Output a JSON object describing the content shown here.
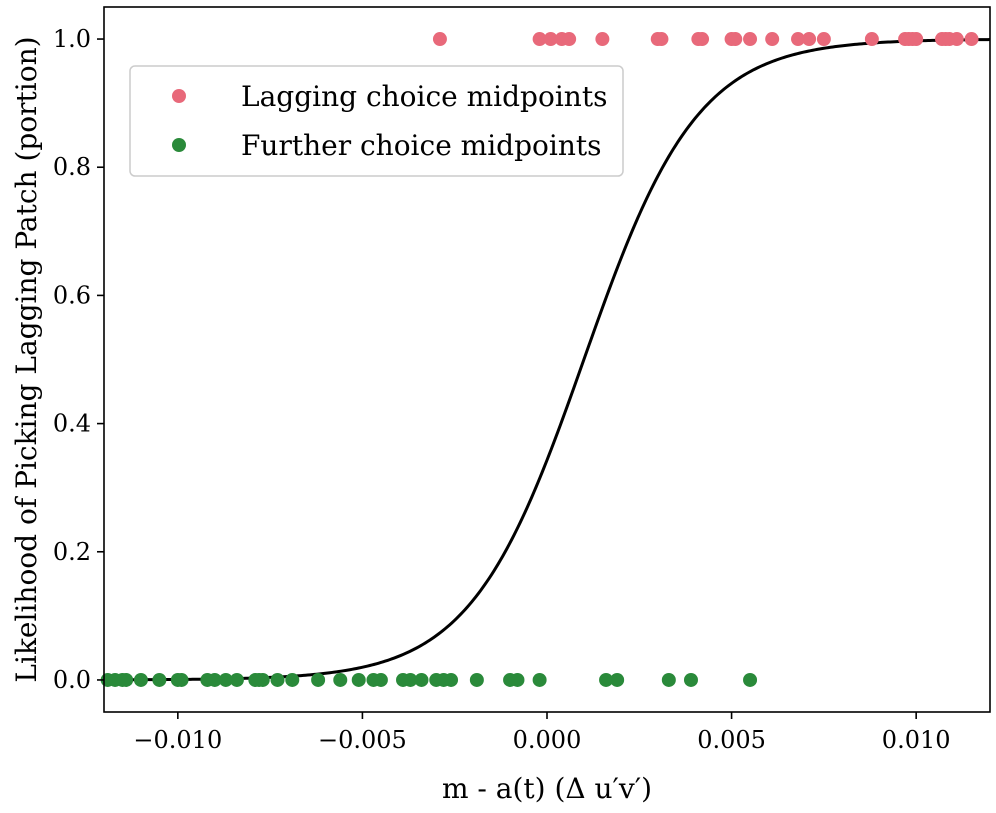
{
  "chart_data": {
    "type": "scatter",
    "title": "",
    "xlabel": "m - a(t) (Δ u′v′)",
    "ylabel": "Likelihood of Picking Lagging Patch (portion)",
    "xlim": [
      -0.012,
      0.012
    ],
    "ylim": [
      -0.05,
      1.05
    ],
    "xticks": [
      -0.01,
      -0.005,
      0.0,
      0.005,
      0.01
    ],
    "xtick_labels": [
      "−0.010",
      "−0.005",
      "0.000",
      "0.005",
      "0.010"
    ],
    "yticks": [
      0.0,
      0.2,
      0.4,
      0.6,
      0.8,
      1.0
    ],
    "ytick_labels": [
      "0.0",
      "0.2",
      "0.4",
      "0.6",
      "0.8",
      "1.0"
    ],
    "grid": false,
    "legend_position": "upper-left",
    "series": [
      {
        "name": "Lagging choice midpoints",
        "color": "#e8697a",
        "x": [
          -0.0029,
          -0.0002,
          0.0001,
          0.0004,
          0.0006,
          0.0015,
          0.003,
          0.0031,
          0.0041,
          0.0042,
          0.005,
          0.0051,
          0.0055,
          0.0061,
          0.0068,
          0.0071,
          0.0075,
          0.0088,
          0.0097,
          0.0098,
          0.0099,
          0.01,
          0.0107,
          0.0108,
          0.0109,
          0.0111,
          0.0115
        ],
        "y": [
          1,
          1,
          1,
          1,
          1,
          1,
          1,
          1,
          1,
          1,
          1,
          1,
          1,
          1,
          1,
          1,
          1,
          1,
          1,
          1,
          1,
          1,
          1,
          1,
          1,
          1,
          1
        ]
      },
      {
        "name": "Further choice midpoints",
        "color": "#2a8a3a",
        "x": [
          -0.0119,
          -0.0117,
          -0.0115,
          -0.0114,
          -0.011,
          -0.0105,
          -0.01,
          -0.0099,
          -0.0092,
          -0.009,
          -0.0087,
          -0.0084,
          -0.0079,
          -0.0078,
          -0.0077,
          -0.0073,
          -0.0069,
          -0.0062,
          -0.0056,
          -0.0051,
          -0.0047,
          -0.0045,
          -0.0039,
          -0.0037,
          -0.0034,
          -0.003,
          -0.0028,
          -0.0026,
          -0.0019,
          -0.001,
          -0.0008,
          -0.0002,
          0.0016,
          0.0019,
          0.0033,
          0.0039,
          0.0055
        ],
        "y": [
          0,
          0,
          0,
          0,
          0,
          0,
          0,
          0,
          0,
          0,
          0,
          0,
          0,
          0,
          0,
          0,
          0,
          0,
          0,
          0,
          0,
          0,
          0,
          0,
          0,
          0,
          0,
          0,
          0,
          0,
          0,
          0,
          0,
          0,
          0,
          0,
          0
        ]
      }
    ],
    "fit_curve": {
      "type": "logistic",
      "color": "#000000",
      "midpoint": 0.001,
      "slope": 650
    }
  }
}
